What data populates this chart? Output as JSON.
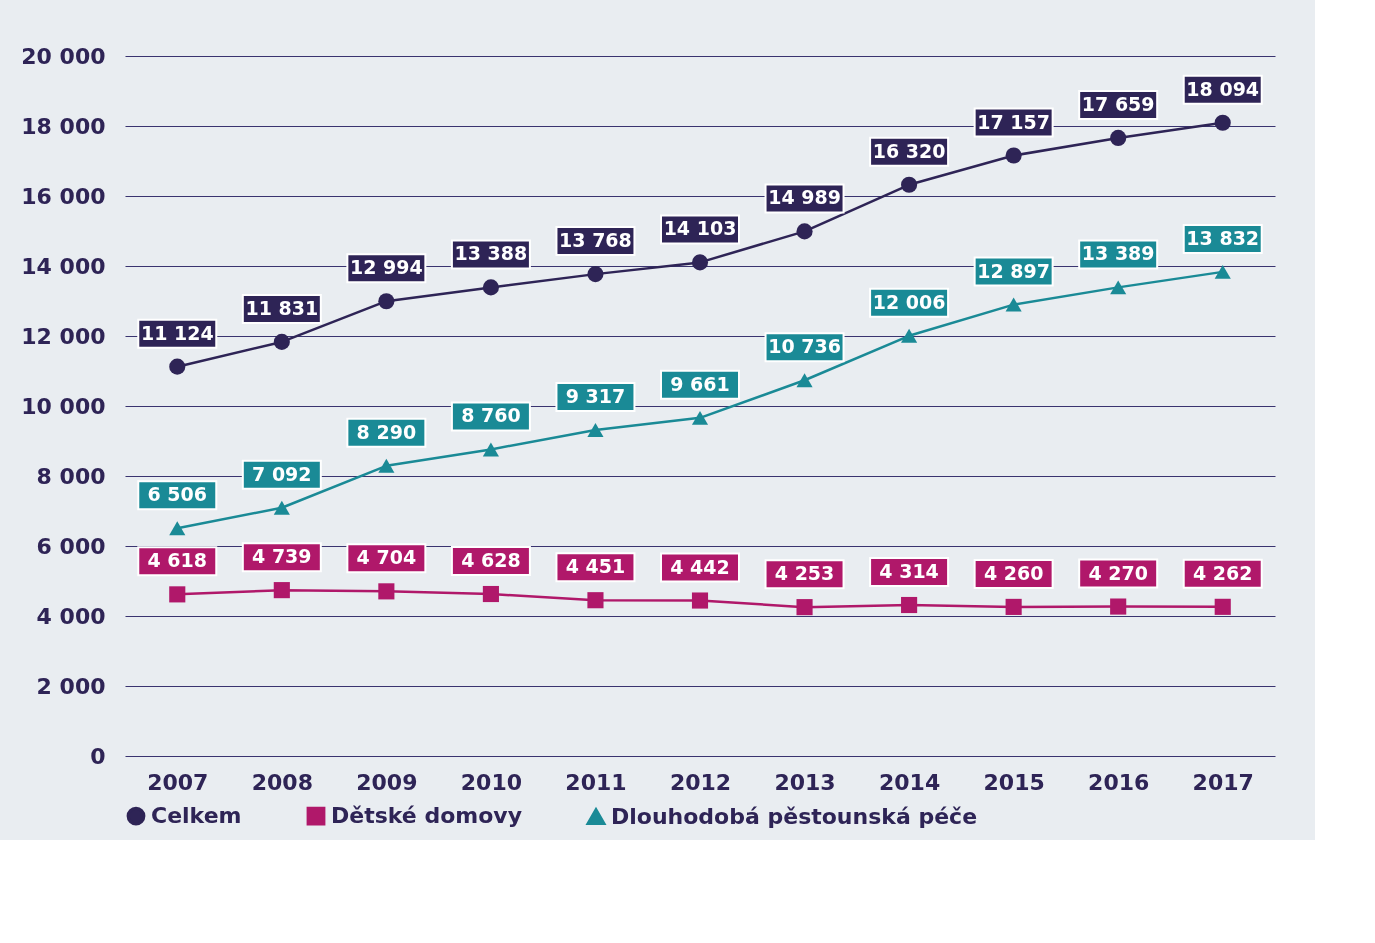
{
  "chart_data": {
    "type": "line",
    "categories": [
      "2007",
      "2008",
      "2009",
      "2010",
      "2011",
      "2012",
      "2013",
      "2014",
      "2015",
      "2016",
      "2017"
    ],
    "series": [
      {
        "name": "Celkem",
        "color": "#2e2456",
        "marker": "circle",
        "values": [
          11124,
          11831,
          12994,
          13388,
          13768,
          14103,
          14989,
          16320,
          17157,
          17659,
          18094
        ],
        "value_labels": [
          "11 124",
          "11 831",
          "12 994",
          "13 388",
          "13 768",
          "14 103",
          "14 989",
          "16 320",
          "17 157",
          "17 659",
          "18 094"
        ]
      },
      {
        "name": "Dětské domovy",
        "color": "#b0186a",
        "marker": "square",
        "values": [
          4618,
          4739,
          4704,
          4628,
          4451,
          4442,
          4253,
          4314,
          4260,
          4270,
          4262
        ],
        "value_labels": [
          "4 618",
          "4 739",
          "4 704",
          "4 628",
          "4 451",
          "4 442",
          "4 253",
          "4 314",
          "4 260",
          "4 270",
          "4 262"
        ]
      },
      {
        "name": "Dlouhodobá pěstounská péče",
        "color": "#1a8a96",
        "marker": "triangle",
        "values": [
          6506,
          7092,
          8290,
          8760,
          9317,
          9661,
          10736,
          12006,
          12897,
          13389,
          13832
        ],
        "value_labels": [
          "6 506",
          "7 092",
          "8 290",
          "8 760",
          "9 317",
          "9 661",
          "10 736",
          "12 006",
          "12 897",
          "13 389",
          "13 832"
        ]
      }
    ],
    "ylim": [
      0,
      20000
    ],
    "yticks": [
      {
        "value": 0,
        "label": "0"
      },
      {
        "value": 2000,
        "label": "2 000"
      },
      {
        "value": 4000,
        "label": "4 000"
      },
      {
        "value": 6000,
        "label": "6 000"
      },
      {
        "value": 8000,
        "label": "8 000"
      },
      {
        "value": 10000,
        "label": "10 000"
      },
      {
        "value": 12000,
        "label": "12 000"
      },
      {
        "value": 14000,
        "label": "14 000"
      },
      {
        "value": 16000,
        "label": "16 000"
      },
      {
        "value": 18000,
        "label": "18 000"
      },
      {
        "value": 20000,
        "label": "20 000"
      }
    ],
    "grid": "y",
    "legend": "bottom",
    "line_style": "solid"
  }
}
